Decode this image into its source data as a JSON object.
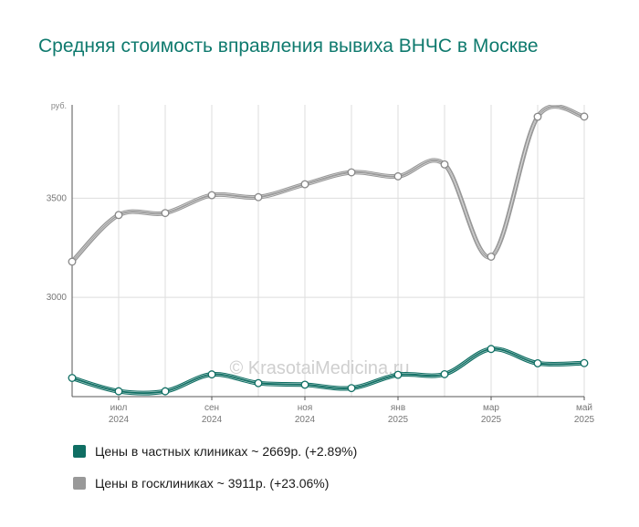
{
  "chart_data": {
    "type": "line",
    "title": "Средняя стоимость вправления вывиха ВНЧС в Москве",
    "watermark": "© KrasotaiMedicina.ru",
    "y_unit": "руб.",
    "ylim": [
      2500,
      3970
    ],
    "y_ticks": [
      {
        "value": 3000,
        "label": "3000"
      },
      {
        "value": 3500,
        "label": "3500"
      }
    ],
    "x": [
      "2024-06",
      "2024-07",
      "2024-08",
      "2024-09",
      "2024-10",
      "2024-11",
      "2024-12",
      "2025-01",
      "2025-02",
      "2025-03",
      "2025-04",
      "2025-05"
    ],
    "x_ticks": [
      {
        "month": "июл",
        "year": "2024",
        "index": 1
      },
      {
        "month": "сен",
        "year": "2024",
        "index": 3
      },
      {
        "month": "ноя",
        "year": "2024",
        "index": 5
      },
      {
        "month": "янв",
        "year": "2025",
        "index": 7
      },
      {
        "month": "мар",
        "year": "2025",
        "index": 9
      },
      {
        "month": "май",
        "year": "2025",
        "index": 11
      }
    ],
    "grid": true,
    "legend_position": "bottom",
    "series": [
      {
        "name": "Цены в госклиниках",
        "legend": "Цены в госклиниках ~ 3911р. (+23.06%)",
        "color": "#999999",
        "values": [
          3180,
          3415,
          3425,
          3515,
          3505,
          3570,
          3630,
          3610,
          3670,
          3205,
          3910,
          3911
        ]
      },
      {
        "name": "Цены в частных клиниках",
        "legend": "Цены в частных клиниках ~ 2669р. (+2.89%)",
        "color": "#0f6e63",
        "values": [
          2594,
          2527,
          2527,
          2612,
          2568,
          2560,
          2543,
          2610,
          2613,
          2740,
          2668,
          2669
        ]
      }
    ]
  }
}
